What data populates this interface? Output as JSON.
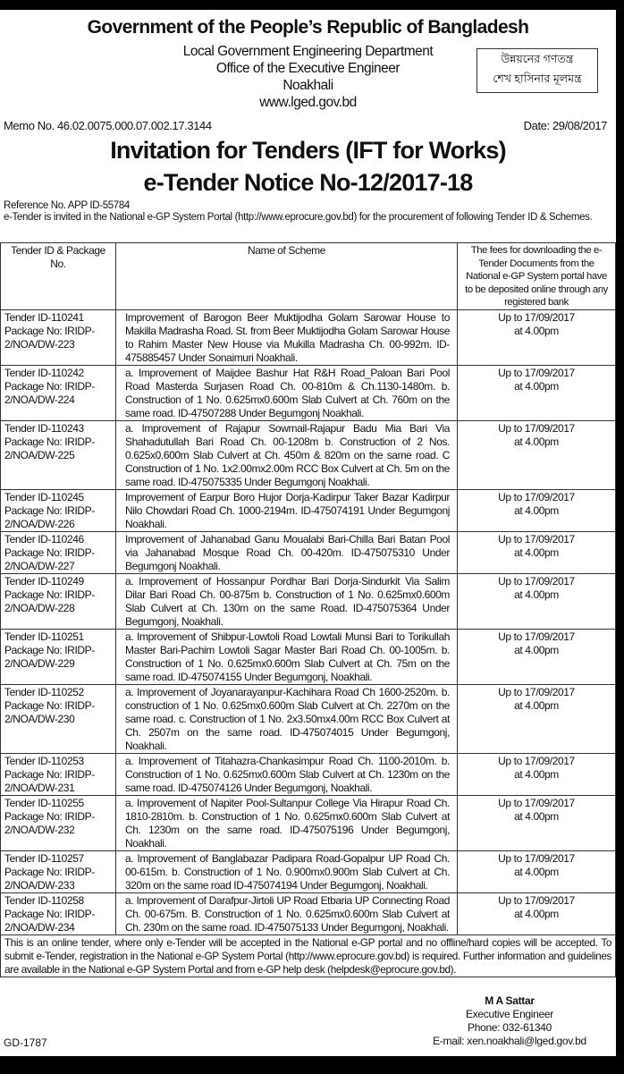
{
  "header": {
    "title": "Government of the People’s Republic of Bangladesh",
    "department": "Local Government Engineering Department",
    "office": "Office of the Executive Engineer",
    "district": "Noakhali",
    "website": "www.lged.gov.bd",
    "slogan_line1": "উন্নয়নের গণতন্ত্র",
    "slogan_line2": "শেখ হাসিনার মূলমন্ত্র",
    "memo": "Memo No. 46.02.0075.000.07.002.17.3144",
    "date": "Date: 29/08/2017"
  },
  "notice": {
    "title": "Invitation for Tenders (IFT for Works)",
    "number": "e-Tender Notice No-12/2017-18",
    "reference": "Reference No. APP ID-55784",
    "intro": "e-Tender is invited in the National e-GP System Portal (http://www.eprocure.gov.bd) for the procurement of following Tender ID & Schemes."
  },
  "table": {
    "headers": [
      "Tender ID & Package No.",
      "Name of Scheme",
      "The fees for downloading the e-Tender Documents from the National e-GP System portal have to be deposited online through any registered bank"
    ],
    "rows": [
      {
        "tender": "Tender ID-110241",
        "package": "Package No: IRIDP-2/NOA/DW-223",
        "scheme": "Improvement of Barogon Beer Muktijodha Golam Sarowar House to Makilla Madrasha Road. St. from Beer Muktijodha Golam Sarowar House to Rahim Master New House via Mukilla Madrasha Ch. 00-992m. ID-475885457 Under Sonaimuri Noakhali.",
        "fee_date": "Up to 17/09/2017",
        "fee_time": "at 4.00pm"
      },
      {
        "tender": "Tender ID-110242",
        "package": "Package No: IRIDP-2/NOA/DW-224",
        "scheme": "a. Improvement of Maijdee Bashur Hat R&H Road_Paloan Bari Pool Road Masterda Surjasen Road Ch. 00-810m & Ch.1130-1480m. b. Construction of 1 No. 0.625mx0.600m Slab Culvert at Ch. 760m on the same road. ID-47507288 Under Begumgonj Noakhali.",
        "fee_date": "Up to 17/09/2017",
        "fee_time": "at 4.00pm"
      },
      {
        "tender": "Tender ID-110243",
        "package": "Package No: IRIDP-2/NOA/DW-225",
        "scheme": "a. Improvement of Rajapur Sowmail-Rajapur Badu Mia Bari Via Shahadutullah Bari Road Ch. 00-1208m b. Construction of 2 Nos. 0.625x0.600m Slab Culvert at Ch. 450m & 820m on the same road. C Construction of 1 No. 1x2.00mx2.00m RCC Box Culvert at Ch. 5m on the same road. ID-475075335 Under Begumgonj Noakhali.",
        "fee_date": "Up to 17/09/2017",
        "fee_time": "at 4.00pm"
      },
      {
        "tender": "Tender ID-110245",
        "package": "Package No: IRIDP-2/NOA/DW-226",
        "scheme": "Improvement of Earpur Boro Hujor Dorja-Kadirpur Taker Bazar Kadirpur Nilo Chowdari Road Ch. 1000-2194m. ID-475074191 Under Begumgonj Noakhali.",
        "fee_date": "Up to 17/09/2017",
        "fee_time": "at 4.00pm"
      },
      {
        "tender": "Tender ID-110246",
        "package": "Package No: IRIDP-2/NOA/DW-227",
        "scheme": "Improvement of Jahanabad Ganu Moualabi Bari-Chilla Bari Batan Pool via Jahanabad Mosque Road Ch. 00-420m. ID-475075310 Under Begumgonj Noakhali.",
        "fee_date": "Up to 17/09/2017",
        "fee_time": "at 4.00pm"
      },
      {
        "tender": "Tender ID-110249",
        "package": "Package No: IRIDP-2/NOA/DW-228",
        "scheme": "a. Improvement of Hossanpur Pordhar Bari Dorja-Sindurkit Via Salim Dilar Bari Road Ch. 00-875m b. Construction of 1 No. 0.625mx0.600m Slab Culvert at Ch. 130m on the same Road. ID-475075364 Under Begumgonj, Noakhali.",
        "fee_date": "Up to 17/09/2017",
        "fee_time": "at 4.00pm"
      },
      {
        "tender": "Tender ID-110251",
        "package": "Package No: IRIDP-2/NOA/DW-229",
        "scheme": "a. Improvement of Shibpur-Lowtoli Road Lowtali Munsi Bari to Torikullah Master Bari-Pachim Lowtoli Sagar Master Bari Road Ch. 00-1005m. b. Construction of 1 No. 0.625mx0.600m Slab Culvert at Ch. 75m on the same road. ID-475074155 Under Begumgonj, Noakhali.",
        "fee_date": "Up to 17/09/2017",
        "fee_time": "at 4.00pm"
      },
      {
        "tender": "Tender ID-110252",
        "package": "Package No: IRIDP-2/NOA/DW-230",
        "scheme": "a. Improvement of Joyanarayanpur-Kachihara Road Ch 1600-2520m. b. construction of 1 No. 0.625mx0.600m Slab Culvert at Ch. 2270m on the same road. c. Construction of 1 No. 2x3.50mx4.00m RCC Box Culvert at Ch. 2507m on the same road. ID-475074015 Under Begumgonj, Noakhali.",
        "fee_date": "Up to 17/09/2017",
        "fee_time": "at 4.00pm"
      },
      {
        "tender": "Tender ID-110253",
        "package": "Package No: IRIDP-2/NOA/DW-231",
        "scheme": "a. Improvement of Titahazra-Chankasimpur Road Ch. 1100-2010m. b. Construction of 1 No. 0.625mx0.600m Slab Culvert at Ch. 1230m on the same road. ID-475074126 Under Begumgonj, Noakhali.",
        "fee_date": "Up to 17/09/2017",
        "fee_time": "at 4.00pm"
      },
      {
        "tender": "Tender ID-110255",
        "package": "Package No: IRIDP-2/NOA/DW-232",
        "scheme": "a. Improvement of Napiter Pool-Sultanpur College Via Hirapur Road Ch. 1810-2810m. b. Construction of 1 No. 0.625mx0.600m Slab Culvert at Ch. 1230m on the same road. ID-475075196 Under Begumgonj, Noakhali.",
        "fee_date": "Up to 17/09/2017",
        "fee_time": "at 4.00pm"
      },
      {
        "tender": "Tender ID-110257",
        "package": "Package No: IRIDP-2/NOA/DW-233",
        "scheme": "a. Improvement of Banglabazar Padipara Road-Gopalpur UP Road Ch. 00-615m. b. Construction of 1 No. 0.900mx0.900m Slab Culvert at Ch. 320m on the same road ID-475074194 Under Begumgonj, Noakhali.",
        "fee_date": "Up to 17/09/2017",
        "fee_time": "at 4.00pm"
      },
      {
        "tender": "Tender ID-110258",
        "package": "Package No: IRIDP-2/NOA/DW-234",
        "scheme": "a. Improvement of Darafpur-Jirtoli UP Road Etbaria UP Connecting Road Ch. 00-675m. B. Construction of 1 No. 0.625mx0.600m Slab Culvert at Ch. 230m on the same road. ID-475075133 Under Begumgonj, Noakhali.",
        "fee_date": "Up to 17/09/2017",
        "fee_time": "at 4.00pm"
      }
    ],
    "note": "This is an online tender, where only e-Tender will be accepted in the National e-GP portal and no offline/hard copies will be accepted. To submit e-Tender, registration in the National e-GP System Portal (http://www.eprocure.gov.bd) is required. Further information and guidelines are available in the National e-GP System Portal and from e-GP help desk (helpdesk@eprocure.gov.bd)."
  },
  "signature": {
    "name": "M A Sattar",
    "designation": "Executive Engineer",
    "phone": "Phone: 032-61340",
    "email": "E-mail: xen.noakhali@lged.gov.bd"
  },
  "gd_number": "GD-1787"
}
